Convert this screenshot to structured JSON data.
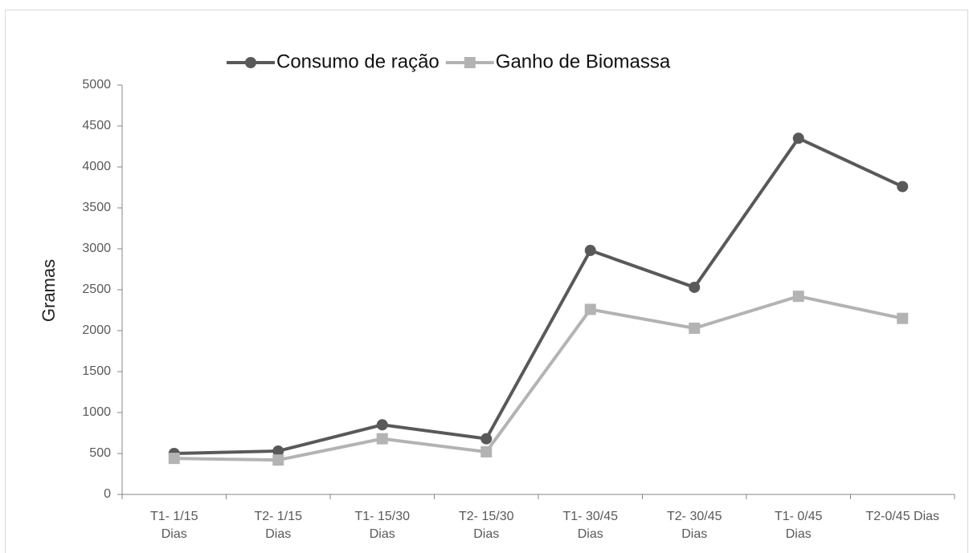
{
  "chart_data": {
    "type": "line",
    "y_label": "Gramas",
    "categories": [
      [
        "T1- 1/15",
        "Dias"
      ],
      [
        "T2- 1/15",
        "Dias"
      ],
      [
        "T1- 15/30",
        "Dias"
      ],
      [
        "T2- 15/30",
        "Dias"
      ],
      [
        "T1- 30/45",
        "Dias"
      ],
      [
        "T2- 30/45",
        "Dias"
      ],
      [
        "T1- 0/45",
        "Dias"
      ],
      [
        "T2-0/45 Dias"
      ]
    ],
    "series": [
      {
        "name": "Consumo de ração",
        "color": "#595959",
        "marker": "circle",
        "values": [
          500,
          530,
          850,
          680,
          2980,
          2530,
          4350,
          3760
        ]
      },
      {
        "name": "Ganho de Biomassa",
        "color": "#b3b3b3",
        "marker": "square",
        "values": [
          440,
          420,
          680,
          520,
          2260,
          2030,
          2420,
          2150
        ]
      }
    ],
    "ylim": [
      0,
      5000
    ],
    "yticks": [
      0,
      500,
      1000,
      1500,
      2000,
      2500,
      3000,
      3500,
      4000,
      4500,
      5000
    ],
    "legend": "top"
  }
}
